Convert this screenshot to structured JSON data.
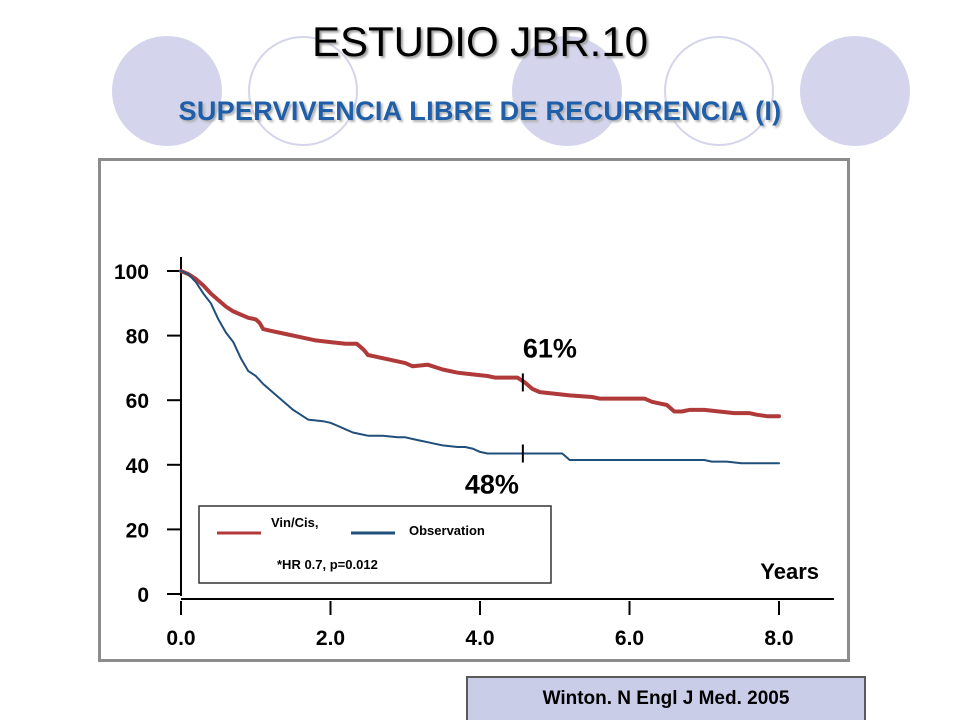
{
  "slide": {
    "title": "ESTUDIO JBR.10",
    "subtitle": "SUPERVIVENCIA LIBRE DE RECURRENCIA (I)",
    "citation": "Winton. N Engl J Med. 2005",
    "colors": {
      "circle_fill": "#d4d4ec",
      "subtitle": "#1f5ea8",
      "citation_bg": "#c9cde8"
    }
  },
  "chart_data": {
    "type": "line",
    "title": "",
    "xlabel": "Years",
    "ylabel": "",
    "xlim": [
      0,
      8
    ],
    "ylim": [
      0,
      100
    ],
    "x_ticks": [
      0,
      2,
      4,
      6,
      8
    ],
    "x_tick_labels": [
      "0.0",
      "2.0",
      "4.0",
      "6.0",
      "8.0"
    ],
    "y_ticks": [
      0,
      20,
      40,
      60,
      80,
      100
    ],
    "y_tick_labels": [
      "0",
      "20",
      "40",
      "60",
      "80",
      "100"
    ],
    "grid": false,
    "series": [
      {
        "name": "Vin/Cis,",
        "color": "#b03a3a",
        "points": [
          [
            0,
            100
          ],
          [
            0.1,
            99
          ],
          [
            0.2,
            97.5
          ],
          [
            0.3,
            95.5
          ],
          [
            0.4,
            93
          ],
          [
            0.5,
            91
          ],
          [
            0.6,
            89
          ],
          [
            0.7,
            87.5
          ],
          [
            0.8,
            86.5
          ],
          [
            0.9,
            85.5
          ],
          [
            1.0,
            85
          ],
          [
            1.05,
            84
          ],
          [
            1.1,
            82
          ],
          [
            1.2,
            81.5
          ],
          [
            1.4,
            80.5
          ],
          [
            1.6,
            79.5
          ],
          [
            1.8,
            78.5
          ],
          [
            2.0,
            78
          ],
          [
            2.2,
            77.5
          ],
          [
            2.35,
            77.5
          ],
          [
            2.45,
            75.5
          ],
          [
            2.5,
            74
          ],
          [
            2.6,
            73.5
          ],
          [
            2.8,
            72.5
          ],
          [
            3.0,
            71.5
          ],
          [
            3.1,
            70.5
          ],
          [
            3.3,
            71
          ],
          [
            3.5,
            69.5
          ],
          [
            3.7,
            68.5
          ],
          [
            3.9,
            68
          ],
          [
            4.1,
            67.5
          ],
          [
            4.2,
            67
          ],
          [
            4.5,
            67
          ],
          [
            4.6,
            65.5
          ],
          [
            4.7,
            63.5
          ],
          [
            4.8,
            62.5
          ],
          [
            5.0,
            62
          ],
          [
            5.2,
            61.5
          ],
          [
            5.5,
            61
          ],
          [
            5.6,
            60.5
          ],
          [
            5.8,
            60.5
          ],
          [
            6.0,
            60.5
          ],
          [
            6.2,
            60.5
          ],
          [
            6.3,
            59.5
          ],
          [
            6.5,
            58.5
          ],
          [
            6.6,
            56.5
          ],
          [
            6.7,
            56.5
          ],
          [
            6.8,
            57
          ],
          [
            7.0,
            57
          ],
          [
            7.2,
            56.5
          ],
          [
            7.4,
            56
          ],
          [
            7.6,
            56
          ],
          [
            7.7,
            55.5
          ],
          [
            7.85,
            55
          ],
          [
            8.0,
            55
          ]
        ]
      },
      {
        "name": "Observation",
        "color": "#1f4f7a",
        "points": [
          [
            0,
            100
          ],
          [
            0.1,
            99
          ],
          [
            0.2,
            96.5
          ],
          [
            0.3,
            93
          ],
          [
            0.4,
            90
          ],
          [
            0.5,
            85
          ],
          [
            0.6,
            81
          ],
          [
            0.7,
            78
          ],
          [
            0.8,
            73
          ],
          [
            0.9,
            69
          ],
          [
            1.0,
            67.5
          ],
          [
            1.1,
            65
          ],
          [
            1.2,
            63
          ],
          [
            1.3,
            61
          ],
          [
            1.4,
            59
          ],
          [
            1.5,
            57
          ],
          [
            1.6,
            55.5
          ],
          [
            1.7,
            54
          ],
          [
            1.9,
            53.5
          ],
          [
            2.0,
            53
          ],
          [
            2.1,
            52
          ],
          [
            2.2,
            51
          ],
          [
            2.3,
            50
          ],
          [
            2.4,
            49.5
          ],
          [
            2.5,
            49
          ],
          [
            2.7,
            49
          ],
          [
            2.9,
            48.5
          ],
          [
            3.0,
            48.5
          ],
          [
            3.1,
            48
          ],
          [
            3.2,
            47.5
          ],
          [
            3.3,
            47
          ],
          [
            3.4,
            46.5
          ],
          [
            3.5,
            46
          ],
          [
            3.7,
            45.5
          ],
          [
            3.8,
            45.5
          ],
          [
            3.9,
            45
          ],
          [
            4.0,
            44
          ],
          [
            4.1,
            43.5
          ],
          [
            4.5,
            43.5
          ],
          [
            4.7,
            43.5
          ],
          [
            4.9,
            43.5
          ],
          [
            5.0,
            43.5
          ],
          [
            5.1,
            43.5
          ],
          [
            5.15,
            42.5
          ],
          [
            5.2,
            41.5
          ],
          [
            5.3,
            41.5
          ],
          [
            5.5,
            41.5
          ],
          [
            5.7,
            41.5
          ],
          [
            6.0,
            41.5
          ],
          [
            6.3,
            41.5
          ],
          [
            6.6,
            41.5
          ],
          [
            6.8,
            41.5
          ],
          [
            7.0,
            41.5
          ],
          [
            7.1,
            41
          ],
          [
            7.3,
            41
          ],
          [
            7.5,
            40.5
          ],
          [
            7.8,
            40.5
          ],
          [
            8.0,
            40.5
          ]
        ]
      }
    ],
    "annotations": [
      {
        "text": "61%",
        "series": 0,
        "x": 4.6
      },
      {
        "text": "48%",
        "series": 1,
        "x": 4.6
      }
    ],
    "legend": {
      "placement": "bottom-left",
      "note": "*HR 0.7, p=0.012"
    }
  }
}
